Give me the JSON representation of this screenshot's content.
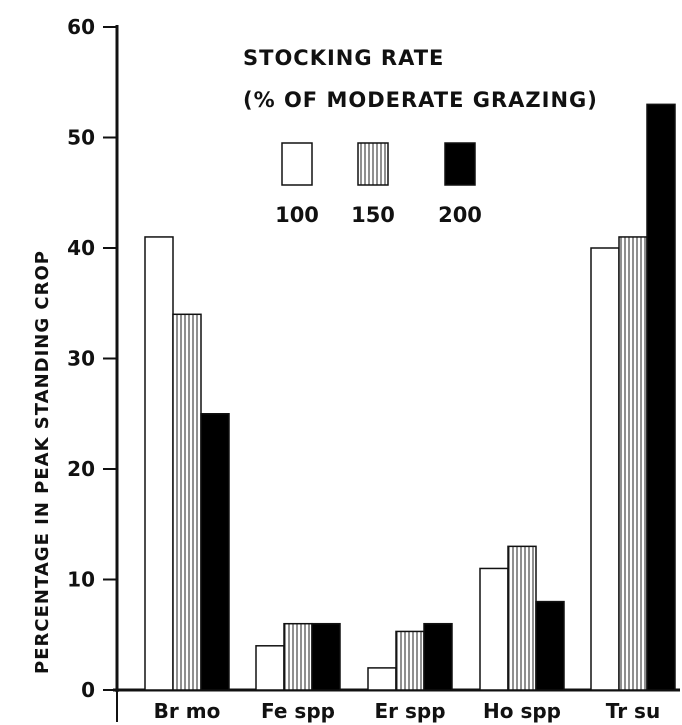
{
  "chart_data": {
    "type": "bar",
    "ylabel": "PERCENTAGE IN PEAK STANDING CROP",
    "xlabel": "",
    "ylim": [
      0,
      60
    ],
    "yticks": [
      "0",
      "10",
      "20",
      "30",
      "40",
      "50",
      "60"
    ],
    "categories": [
      "Br mo",
      "Fe spp",
      "Er spp",
      "Ho spp",
      "Tr su"
    ],
    "legend": {
      "title_line1": "STOCKING RATE",
      "title_line2": "(% OF MODERATE GRAZING)",
      "placement": "top-center"
    },
    "series": [
      {
        "name": "100",
        "fill": "white",
        "values": [
          41,
          4,
          2,
          11,
          40
        ]
      },
      {
        "name": "150",
        "fill": "hatched",
        "values": [
          34,
          6,
          5.3,
          13,
          41
        ]
      },
      {
        "name": "200",
        "fill": "black",
        "values": [
          25,
          6,
          6,
          8,
          53
        ]
      }
    ]
  }
}
